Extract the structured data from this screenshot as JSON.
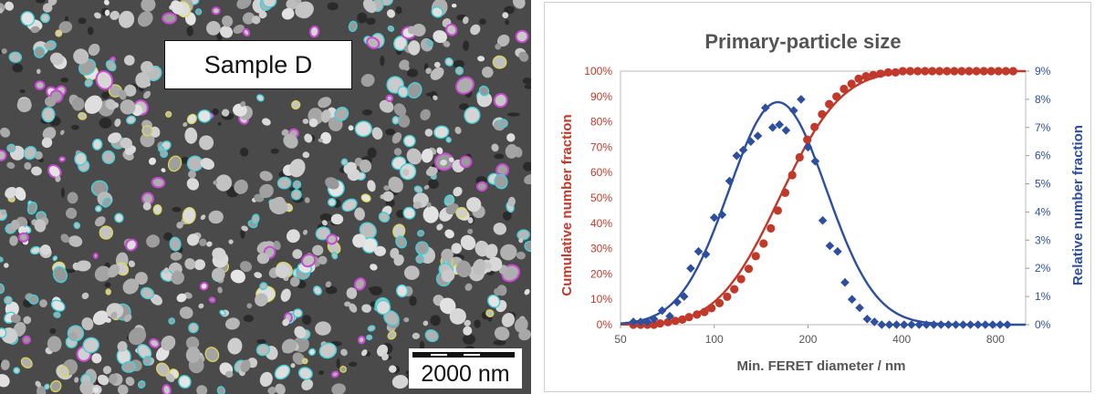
{
  "sem": {
    "label": "Sample D",
    "scalebar": "2000 nm",
    "colors": {
      "background": "#4a4a4a",
      "particle": "#bdbdbd",
      "cyan_outline": "#3fd0d8",
      "magenta_outline": "#c84ad0",
      "yellow_outline": "#e0d84a"
    }
  },
  "chart_data": {
    "type": "scatter",
    "title": "Primary-particle size",
    "xlabel": "Min. FERET diameter / nm",
    "ylabel_left": "Cumulative number fraction",
    "ylabel_right": "Relative number fraction",
    "x_scale": "log",
    "xlim": [
      50,
      1000
    ],
    "x_ticks": [
      "50",
      "100",
      "200",
      "400",
      "800"
    ],
    "x_tick_values": [
      50,
      100,
      200,
      400,
      800
    ],
    "ylim_left": [
      0,
      100
    ],
    "y_ticks_left": [
      "0%",
      "10%",
      "20%",
      "30%",
      "40%",
      "50%",
      "60%",
      "70%",
      "80%",
      "90%",
      "100%"
    ],
    "ylim_right": [
      0,
      9
    ],
    "y_ticks_right": [
      "0%",
      "1%",
      "2%",
      "3%",
      "4%",
      "5%",
      "6%",
      "7%",
      "8%",
      "9%"
    ],
    "colors": {
      "cumulative": "#c0392b",
      "relative": "#2e4f9e",
      "axis_left": "#c0392b",
      "axis_right": "#2e4f9e",
      "title": "#555555"
    },
    "series": [
      {
        "axis": "left",
        "marker": "circle",
        "x": [
          55,
          58,
          61,
          64,
          67,
          71,
          75,
          79,
          83,
          88,
          93,
          98,
          104,
          110,
          116,
          122,
          129,
          136,
          144,
          152,
          160,
          169,
          178,
          188,
          199,
          210,
          222,
          234,
          247,
          261,
          276,
          291,
          307,
          324,
          342,
          362,
          382,
          403,
          426,
          450,
          475,
          501,
          529,
          559,
          590,
          623,
          658,
          695,
          734,
          775,
          818,
          864,
          912
        ],
        "values": [
          0,
          0,
          0,
          0,
          0.5,
          1,
          1.5,
          2,
          3,
          4,
          5,
          6.5,
          8.5,
          11,
          14,
          18,
          22,
          27,
          32,
          38,
          45,
          52,
          59,
          66,
          73,
          78,
          83,
          87,
          90,
          93,
          95,
          97,
          98,
          98.5,
          99,
          99.5,
          99.5,
          100,
          100,
          100,
          100,
          100,
          100,
          100,
          100,
          100,
          100,
          100,
          100,
          100,
          100,
          100,
          100
        ]
      },
      {
        "axis": "right",
        "marker": "diamond",
        "x": [
          55,
          58,
          61,
          64,
          68,
          72,
          76,
          80,
          84,
          89,
          94,
          100,
          106,
          112,
          118,
          124,
          131,
          138,
          146,
          154,
          162,
          170,
          180,
          190,
          200,
          211,
          223,
          235,
          249,
          263,
          277,
          293,
          310,
          327,
          345,
          365,
          385,
          407,
          430,
          455,
          480,
          507,
          535,
          565,
          597,
          630,
          665,
          703,
          742,
          784,
          828,
          874
        ],
        "values": [
          0.1,
          0.1,
          0.1,
          0.2,
          0.5,
          0.3,
          0.8,
          1.0,
          2.0,
          2.6,
          2.5,
          3.8,
          3.9,
          5.1,
          6.0,
          6.2,
          6.5,
          6.7,
          7.7,
          7.0,
          7.1,
          6.9,
          7.6,
          8.0,
          6.3,
          5.8,
          3.7,
          2.8,
          2.6,
          1.5,
          0.9,
          0.6,
          0.2,
          0.1,
          0.0,
          0.0,
          0.0,
          0.0,
          0.0,
          0.0,
          0.0,
          0.0,
          0.0,
          0.0,
          0.0,
          0.0,
          0.0,
          0.0,
          0.0,
          0.0,
          0.0,
          0.0
        ]
      }
    ],
    "fit_curves": [
      {
        "axis": "left",
        "model": "lognormal_cdf",
        "median": 162,
        "sigma": 0.36,
        "scale": 100
      },
      {
        "axis": "right",
        "model": "lognormal_pdf",
        "median": 160,
        "sigma": 0.36,
        "peak": 7.9
      }
    ],
    "grid": false,
    "legend": "none"
  }
}
